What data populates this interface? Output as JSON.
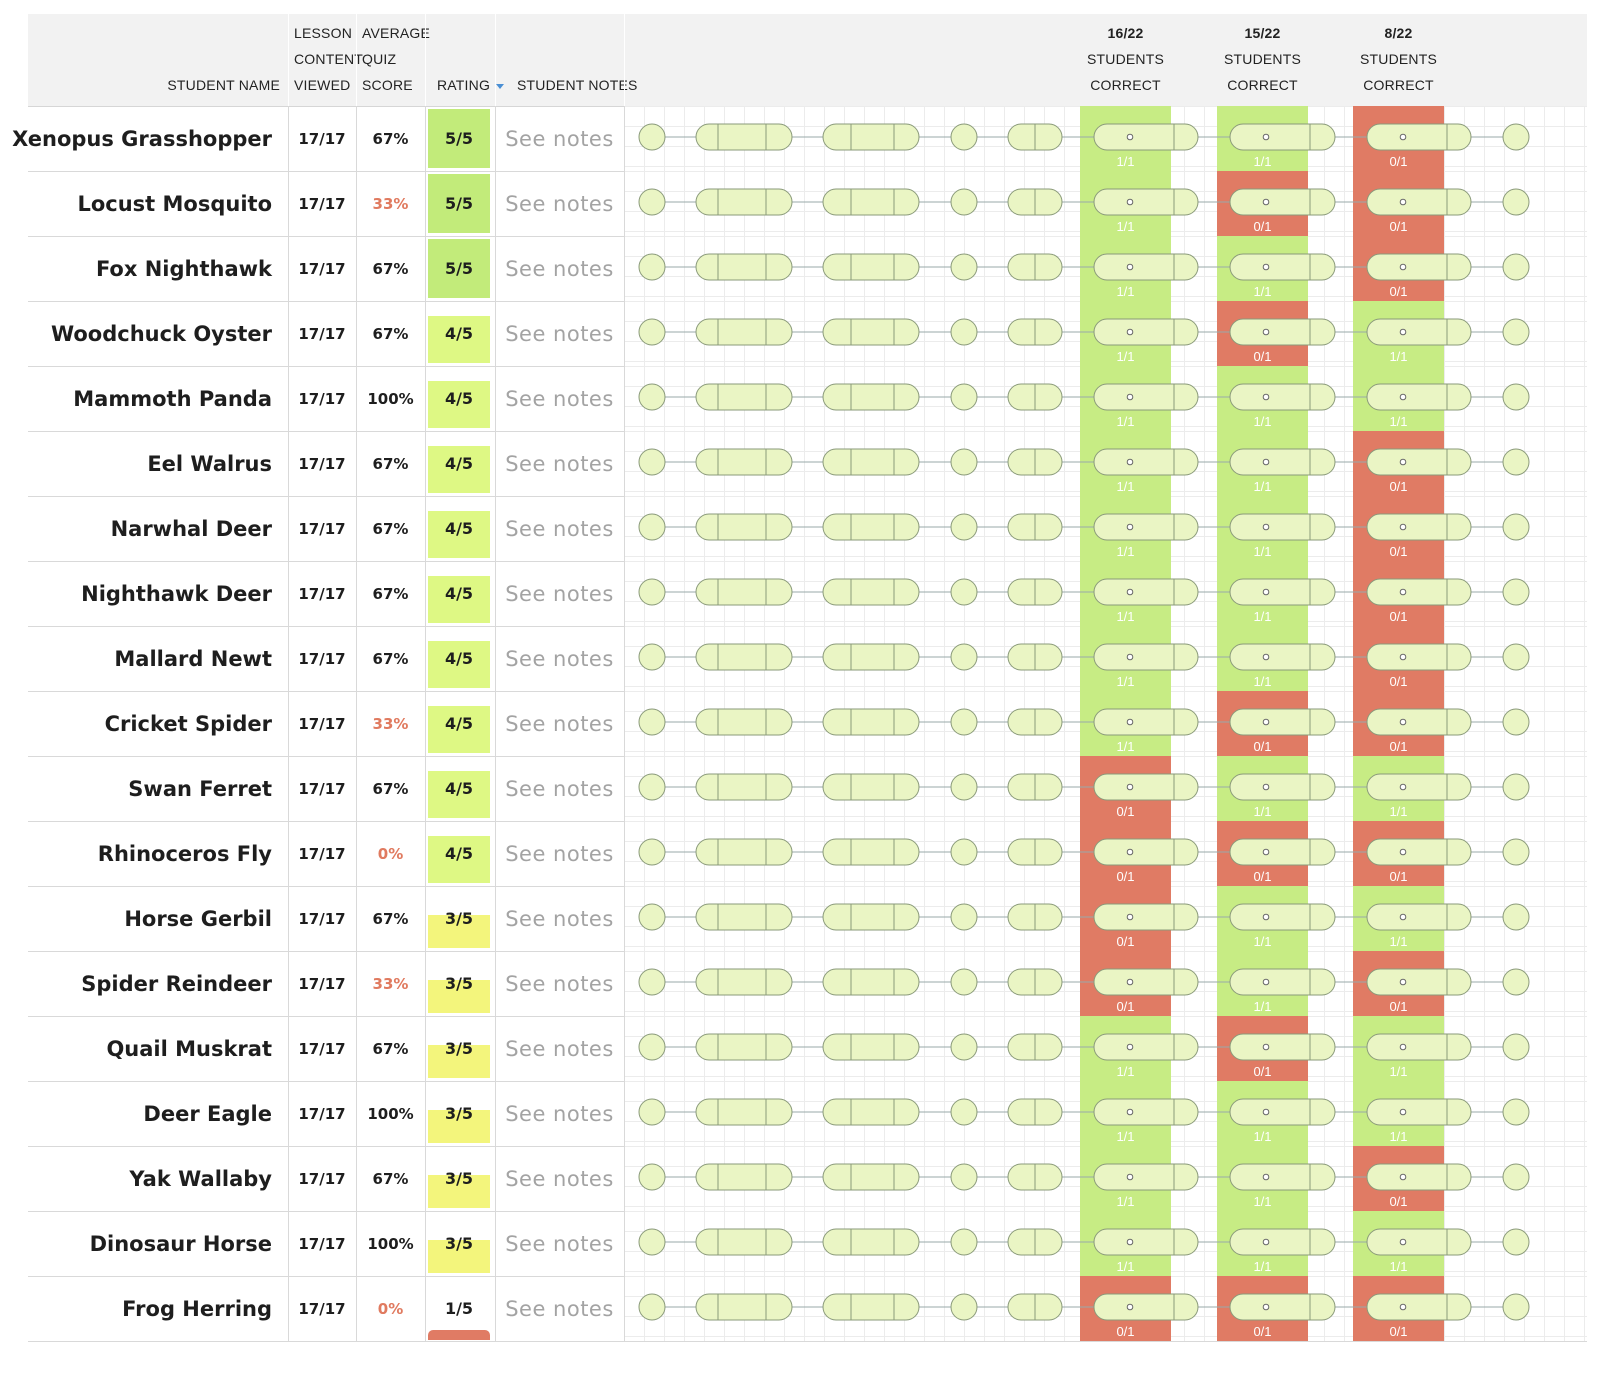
{
  "colors": {
    "correct": "#c7ec84",
    "incorrect": "#e07b64",
    "rating5": "#c2eb7a",
    "rating4": "#def884",
    "rating3": "#f3f57c",
    "rating1": "#e07b64",
    "bad_score": "#e07a5f",
    "node_fill": "#eaf5c4",
    "node_stroke": "#8a9a7a",
    "sort_arrow": "#4a8fd4"
  },
  "header": {
    "student_name": "STUDENT NAME",
    "lesson_content": [
      "LESSON",
      "CONTENT",
      "VIEWED"
    ],
    "average_quiz": [
      "AVERAGE",
      "QUIZ",
      "SCORE"
    ],
    "rating": "RATING",
    "sort_icon": "sort-descending-icon",
    "student_notes": "STUDENT NOTES",
    "quiz_columns": [
      {
        "fraction": "16/22",
        "line2": "STUDENTS",
        "line3": "CORRECT"
      },
      {
        "fraction": "15/22",
        "line2": "STUDENTS",
        "line3": "CORRECT"
      },
      {
        "fraction": "8/22",
        "line2": "STUDENTS",
        "line3": "CORRECT"
      }
    ]
  },
  "notes_label": "See notes",
  "students": [
    {
      "name": "Xenopus Grasshopper",
      "viewed": "17/17",
      "score": "67%",
      "score_bad": false,
      "rating": "5/5",
      "rating_level": 5,
      "quiz": [
        "1/1",
        "1/1",
        "0/1"
      ]
    },
    {
      "name": "Locust Mosquito",
      "viewed": "17/17",
      "score": "33%",
      "score_bad": true,
      "rating": "5/5",
      "rating_level": 5,
      "quiz": [
        "1/1",
        "0/1",
        "0/1"
      ]
    },
    {
      "name": "Fox Nighthawk",
      "viewed": "17/17",
      "score": "67%",
      "score_bad": false,
      "rating": "5/5",
      "rating_level": 5,
      "quiz": [
        "1/1",
        "1/1",
        "0/1"
      ]
    },
    {
      "name": "Woodchuck Oyster",
      "viewed": "17/17",
      "score": "67%",
      "score_bad": false,
      "rating": "4/5",
      "rating_level": 4,
      "quiz": [
        "1/1",
        "0/1",
        "1/1"
      ]
    },
    {
      "name": "Mammoth Panda",
      "viewed": "17/17",
      "score": "100%",
      "score_bad": false,
      "rating": "4/5",
      "rating_level": 4,
      "quiz": [
        "1/1",
        "1/1",
        "1/1"
      ]
    },
    {
      "name": "Eel Walrus",
      "viewed": "17/17",
      "score": "67%",
      "score_bad": false,
      "rating": "4/5",
      "rating_level": 4,
      "quiz": [
        "1/1",
        "1/1",
        "0/1"
      ]
    },
    {
      "name": "Narwhal Deer",
      "viewed": "17/17",
      "score": "67%",
      "score_bad": false,
      "rating": "4/5",
      "rating_level": 4,
      "quiz": [
        "1/1",
        "1/1",
        "0/1"
      ]
    },
    {
      "name": "Nighthawk Deer",
      "viewed": "17/17",
      "score": "67%",
      "score_bad": false,
      "rating": "4/5",
      "rating_level": 4,
      "quiz": [
        "1/1",
        "1/1",
        "0/1"
      ]
    },
    {
      "name": "Mallard Newt",
      "viewed": "17/17",
      "score": "67%",
      "score_bad": false,
      "rating": "4/5",
      "rating_level": 4,
      "quiz": [
        "1/1",
        "1/1",
        "0/1"
      ]
    },
    {
      "name": "Cricket Spider",
      "viewed": "17/17",
      "score": "33%",
      "score_bad": true,
      "rating": "4/5",
      "rating_level": 4,
      "quiz": [
        "1/1",
        "0/1",
        "0/1"
      ]
    },
    {
      "name": "Swan Ferret",
      "viewed": "17/17",
      "score": "67%",
      "score_bad": false,
      "rating": "4/5",
      "rating_level": 4,
      "quiz": [
        "0/1",
        "1/1",
        "1/1"
      ]
    },
    {
      "name": "Rhinoceros Fly",
      "viewed": "17/17",
      "score": "0%",
      "score_bad": true,
      "rating": "4/5",
      "rating_level": 4,
      "quiz": [
        "0/1",
        "0/1",
        "0/1"
      ]
    },
    {
      "name": "Horse Gerbil",
      "viewed": "17/17",
      "score": "67%",
      "score_bad": false,
      "rating": "3/5",
      "rating_level": 3,
      "quiz": [
        "0/1",
        "1/1",
        "1/1"
      ]
    },
    {
      "name": "Spider Reindeer",
      "viewed": "17/17",
      "score": "33%",
      "score_bad": true,
      "rating": "3/5",
      "rating_level": 3,
      "quiz": [
        "0/1",
        "1/1",
        "0/1"
      ]
    },
    {
      "name": "Quail Muskrat",
      "viewed": "17/17",
      "score": "67%",
      "score_bad": false,
      "rating": "3/5",
      "rating_level": 3,
      "quiz": [
        "1/1",
        "0/1",
        "1/1"
      ]
    },
    {
      "name": "Deer Eagle",
      "viewed": "17/17",
      "score": "100%",
      "score_bad": false,
      "rating": "3/5",
      "rating_level": 3,
      "quiz": [
        "1/1",
        "1/1",
        "1/1"
      ]
    },
    {
      "name": "Yak Wallaby",
      "viewed": "17/17",
      "score": "67%",
      "score_bad": false,
      "rating": "3/5",
      "rating_level": 3,
      "quiz": [
        "1/1",
        "1/1",
        "0/1"
      ]
    },
    {
      "name": "Dinosaur Horse",
      "viewed": "17/17",
      "score": "100%",
      "score_bad": false,
      "rating": "3/5",
      "rating_level": 3,
      "quiz": [
        "1/1",
        "1/1",
        "1/1"
      ]
    },
    {
      "name": "Frog Herring",
      "viewed": "17/17",
      "score": "0%",
      "score_bad": true,
      "rating": "1/5",
      "rating_level": 1,
      "quiz": [
        "0/1",
        "0/1",
        "0/1"
      ]
    }
  ]
}
